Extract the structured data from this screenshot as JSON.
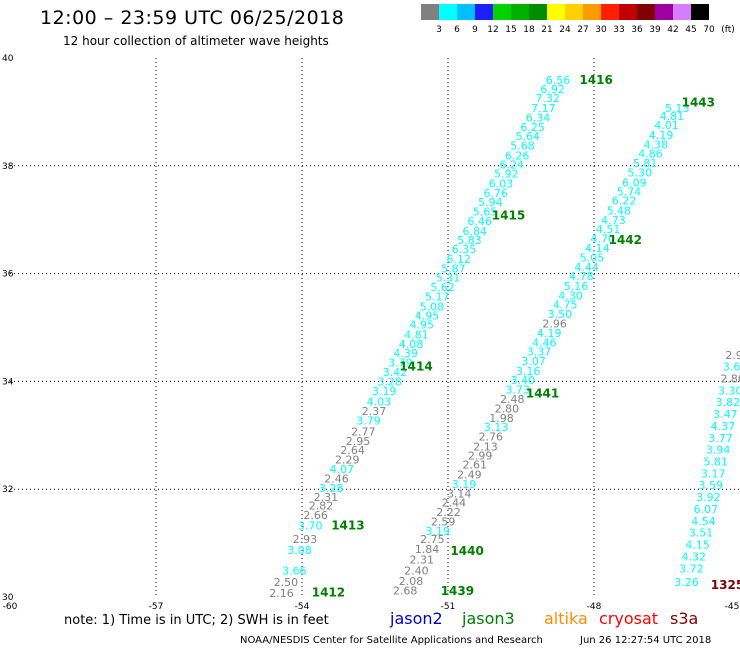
{
  "header": {
    "title": "12:00 – 23:59 UTC 06/25/2018",
    "subtitle": "12 hour collection of altimeter wave heights"
  },
  "legend": {
    "unit": "(ft)",
    "items": [
      {
        "label": "3",
        "color": "#808080"
      },
      {
        "label": "6",
        "color": "#00ffff"
      },
      {
        "label": "9",
        "color": "#00bfff"
      },
      {
        "label": "12",
        "color": "#1e1eff"
      },
      {
        "label": "15",
        "color": "#00d400"
      },
      {
        "label": "18",
        "color": "#00b000"
      },
      {
        "label": "21",
        "color": "#008c00"
      },
      {
        "label": "24",
        "color": "#ffff00"
      },
      {
        "label": "27",
        "color": "#ffd000"
      },
      {
        "label": "30",
        "color": "#ff9a00"
      },
      {
        "label": "33",
        "color": "#ff2000"
      },
      {
        "label": "36",
        "color": "#c00000"
      },
      {
        "label": "39",
        "color": "#800000"
      },
      {
        "label": "42",
        "color": "#a000a0"
      },
      {
        "label": "45",
        "color": "#d67cff"
      },
      {
        "label": "70",
        "color": "#000000"
      }
    ]
  },
  "footer": {
    "note": "note: 1) Time is in UTC; 2) SWH is in feet",
    "satellites": [
      {
        "name": "jason2",
        "color": "#0000cc"
      },
      {
        "name": "jason3",
        "color": "#008000"
      },
      {
        "name": "altika",
        "color": "#ff8c00"
      },
      {
        "name": "cryosat",
        "color": "#ff0000"
      },
      {
        "name": "s3a",
        "color": "#800000"
      }
    ],
    "credit": "NOAA/NESDIS Center for Satellite Applications and Research",
    "timestamp": "Jun 26 12:27:54 UTC 2018"
  },
  "chart_data": {
    "type": "scatter",
    "title": "12:00 – 23:59 UTC 06/25/2018",
    "subtitle": "12 hour collection of altimeter wave heights",
    "xlabel": "",
    "ylabel": "",
    "xlim": [
      -60,
      -45
    ],
    "ylim": [
      30,
      40
    ],
    "x_ticks": [
      "-60",
      "-57",
      "-54",
      "-51",
      "-48",
      "-45"
    ],
    "y_ticks": [
      "30",
      "32",
      "34",
      "36",
      "38",
      "40"
    ],
    "grid": true,
    "grid_style": "dotted",
    "series": [
      {
        "name": "jason3",
        "color": "#008000",
        "tracks": [
          {
            "label": "1412",
            "label_pos": [
              -53.8,
              30.01
            ]
          },
          {
            "label": "1413",
            "label_pos": [
              -53.4,
              31.25
            ]
          },
          {
            "label": "1414",
            "label_pos": [
              -52.0,
              34.2
            ]
          },
          {
            "label": "1415",
            "label_pos": [
              -50.1,
              37.0
            ]
          },
          {
            "label": "1416",
            "label_pos": [
              -48.3,
              39.52
            ]
          },
          {
            "label": "1439",
            "label_pos": [
              -51.15,
              30.04
            ]
          },
          {
            "label": "1440",
            "label_pos": [
              -50.95,
              30.78
            ]
          },
          {
            "label": "1441",
            "label_pos": [
              -49.4,
              33.7
            ]
          },
          {
            "label": "1442",
            "label_pos": [
              -47.7,
              36.55
            ]
          },
          {
            "label": "1443",
            "label_pos": [
              -46.2,
              39.1
            ]
          }
        ]
      },
      {
        "name": "s3a",
        "color": "#800000",
        "tracks": [
          {
            "label": "1325",
            "label_pos": [
              -45.6,
              30.15
            ]
          }
        ]
      }
    ],
    "wave_heights_ft": [
      {
        "track": "1412-1416",
        "x": [
          -54.42,
          -54.33,
          -54.16,
          -54.05,
          -53.94,
          -53.83,
          -53.72,
          -53.61,
          -53.51,
          -53.4,
          -53.29,
          -53.18,
          -53.07,
          -52.96,
          -52.85,
          -52.74,
          -52.63,
          -52.52,
          -52.42,
          -52.31,
          -52.2,
          -52.09,
          -51.98,
          -51.87,
          -51.76,
          -51.65,
          -51.54,
          -51.43,
          -51.33,
          -51.22,
          -51.11,
          -51.0,
          -50.89,
          -50.78,
          -50.67,
          -50.56,
          -50.45,
          -50.35,
          -50.24,
          -50.13,
          -50.02,
          -49.91,
          -49.8,
          -49.69,
          -49.58,
          -49.47,
          -49.36,
          -49.26,
          -49.15,
          -49.04
        ],
        "y": [
          30.0,
          30.2,
          30.42,
          30.8,
          31.0,
          31.25,
          31.45,
          31.62,
          31.78,
          31.95,
          32.12,
          32.3,
          32.48,
          32.65,
          32.82,
          33.0,
          33.2,
          33.38,
          33.55,
          33.75,
          33.92,
          34.1,
          34.28,
          34.45,
          34.62,
          34.8,
          34.98,
          35.15,
          35.32,
          35.5,
          35.68,
          35.85,
          36.02,
          36.2,
          36.38,
          36.55,
          36.72,
          36.9,
          37.08,
          37.25,
          37.42,
          37.6,
          37.78,
          37.95,
          38.12,
          38.3,
          38.48,
          38.65,
          38.82,
          39.0
        ],
        "values": [
          2.16,
          2.5,
          3.66,
          3.08,
          2.93,
          3.7,
          2.66,
          2.82,
          2.31,
          3.28,
          2.46,
          4.07,
          2.29,
          2.64,
          2.95,
          2.77,
          3.79,
          2.37,
          4.03,
          3.19,
          3.28,
          3.42,
          3.79,
          4.39,
          4.08,
          4.81,
          4.95,
          4.95,
          5.08,
          5.17,
          5.62,
          5.31,
          5.87,
          6.12,
          6.35,
          5.83,
          6.84,
          6.46,
          5.65,
          5.94,
          6.76,
          6.03,
          5.92,
          6.24,
          6.26,
          5.68,
          5.64,
          6.25,
          6.34,
          7.17
        ],
        "colors": [
          "#808080",
          "#808080",
          "#00ffff",
          "#00ffff",
          "#808080",
          "#00ffff",
          "#808080",
          "#808080",
          "#808080",
          "#00ffff",
          "#808080",
          "#00ffff",
          "#808080",
          "#808080",
          "#808080",
          "#808080",
          "#00ffff",
          "#808080",
          "#00ffff",
          "#00ffff",
          "#00ffff",
          "#00ffff",
          "#00ffff",
          "#00ffff",
          "#00ffff",
          "#00ffff",
          "#00ffff",
          "#00ffff",
          "#00ffff",
          "#00ffff",
          "#00ffff",
          "#00ffff",
          "#00ffff",
          "#00ffff",
          "#00ffff",
          "#00ffff",
          "#00ffff",
          "#00ffff",
          "#00ffff",
          "#00ffff",
          "#00ffff",
          "#00ffff",
          "#00ffff",
          "#00ffff",
          "#00ffff",
          "#00ffff",
          "#00ffff",
          "#00ffff",
          "#00ffff",
          "#00ffff"
        ]
      },
      {
        "track": "1416-top",
        "x": [
          -48.95,
          -48.85,
          -48.74
        ],
        "y": [
          39.18,
          39.35,
          39.52
        ],
        "values": [
          7.32,
          6.92,
          6.56
        ],
        "colors": [
          "#00ffff",
          "#00ffff",
          "#00ffff"
        ]
      },
      {
        "track": "1439-1443",
        "x": [
          -51.88,
          -51.76,
          -51.65,
          -51.54,
          -51.43,
          -51.32,
          -51.21,
          -51.1,
          -50.99,
          -50.88,
          -50.77,
          -50.67,
          -50.56,
          -50.45,
          -50.34,
          -50.23,
          -50.12,
          -50.01,
          -49.9,
          -49.79,
          -49.68,
          -49.57,
          -49.46,
          -49.35,
          -49.24,
          -49.13,
          -49.02,
          -48.92,
          -48.81,
          -48.7,
          -48.59,
          -48.48,
          -48.37,
          -48.26,
          -48.15,
          -48.04,
          -47.93,
          -47.82,
          -47.71,
          -47.6,
          -47.49,
          -47.38,
          -47.28,
          -47.17,
          -47.06,
          -46.95,
          -46.84,
          -46.73,
          -46.62,
          -46.51,
          -46.4
        ],
        "y": [
          30.05,
          30.22,
          30.42,
          30.62,
          30.82,
          31.0,
          31.15,
          31.33,
          31.5,
          31.68,
          31.85,
          32.02,
          32.2,
          32.38,
          32.55,
          32.72,
          32.9,
          33.08,
          33.25,
          33.42,
          33.6,
          33.78,
          33.95,
          34.12,
          34.3,
          34.48,
          34.65,
          34.82,
          35.0,
          35.18,
          35.35,
          35.52,
          35.7,
          35.88,
          36.05,
          36.22,
          36.4,
          36.58,
          36.75,
          36.92,
          37.1,
          37.28,
          37.45,
          37.62,
          37.8,
          37.98,
          38.15,
          38.32,
          38.5,
          38.68,
          38.85
        ],
        "values": [
          2.68,
          2.08,
          2.4,
          2.31,
          1.84,
          2.75,
          3.19,
          2.59,
          2.22,
          2.44,
          3.14,
          3.19,
          2.49,
          2.61,
          2.99,
          2.13,
          2.76,
          3.13,
          1.98,
          2.8,
          2.48,
          3.73,
          3.4,
          3.16,
          3.07,
          3.37,
          4.46,
          4.19,
          2.96,
          3.5,
          4.75,
          4.3,
          5.16,
          4.78,
          4.44,
          5.05,
          4.14,
          4.7,
          4.51,
          4.73,
          5.48,
          6.22,
          5.74,
          6.09,
          5.3,
          5.81,
          4.86,
          4.38,
          4.19,
          4.01,
          4.81
        ],
        "colors": [
          "#808080",
          "#808080",
          "#808080",
          "#808080",
          "#808080",
          "#808080",
          "#00ffff",
          "#808080",
          "#808080",
          "#808080",
          "#808080",
          "#00ffff",
          "#808080",
          "#808080",
          "#808080",
          "#808080",
          "#808080",
          "#00ffff",
          "#808080",
          "#808080",
          "#808080",
          "#00ffff",
          "#00ffff",
          "#00ffff",
          "#00ffff",
          "#00ffff",
          "#00ffff",
          "#00ffff",
          "#808080",
          "#00ffff",
          "#00ffff",
          "#00ffff",
          "#00ffff",
          "#00ffff",
          "#00ffff",
          "#00ffff",
          "#00ffff",
          "#00ffff",
          "#00ffff",
          "#00ffff",
          "#00ffff",
          "#00ffff",
          "#00ffff",
          "#00ffff",
          "#00ffff",
          "#00ffff",
          "#00ffff",
          "#00ffff",
          "#00ffff",
          "#00ffff",
          "#00ffff"
        ]
      },
      {
        "track": "1443-top",
        "x": [
          -46.29
        ],
        "y": [
          39.0
        ],
        "values": [
          5.13
        ],
        "colors": [
          "#00ffff"
        ]
      },
      {
        "track": "1325",
        "x": [
          -46.1,
          -46.0,
          -45.95,
          -45.87,
          -45.8,
          -45.75,
          -45.7,
          -45.65,
          -45.6,
          -45.55,
          -45.5,
          -45.45,
          -45.4,
          -45.35,
          -45.3,
          -45.25,
          -45.2,
          -45.15,
          -45.1,
          -45.05
        ],
        "y": [
          30.2,
          30.45,
          30.68,
          30.9,
          31.12,
          31.34,
          31.56,
          31.78,
          32.0,
          32.22,
          32.44,
          32.66,
          32.88,
          33.1,
          33.32,
          33.54,
          33.76,
          33.98,
          34.2,
          34.42
        ],
        "values": [
          3.26,
          3.72,
          4.32,
          4.15,
          3.51,
          4.54,
          6.07,
          3.92,
          3.59,
          3.17,
          5.81,
          3.94,
          3.77,
          4.37,
          3.47,
          3.82,
          3.3,
          2.8,
          3.6,
          2.9
        ],
        "colors": [
          "#00ffff",
          "#00ffff",
          "#00ffff",
          "#00ffff",
          "#00ffff",
          "#00ffff",
          "#00ffff",
          "#00ffff",
          "#00ffff",
          "#00ffff",
          "#00ffff",
          "#00ffff",
          "#00ffff",
          "#00ffff",
          "#00ffff",
          "#00ffff",
          "#00ffff",
          "#808080",
          "#00ffff",
          "#808080"
        ]
      }
    ]
  }
}
